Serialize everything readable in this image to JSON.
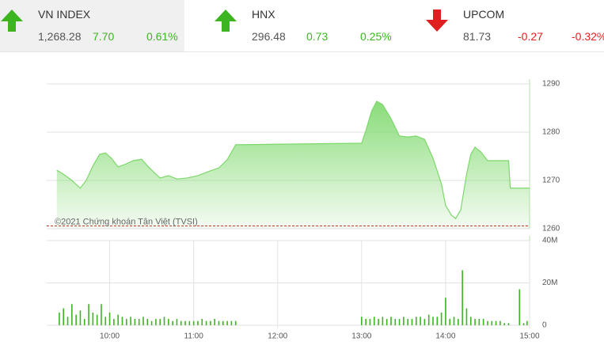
{
  "indices": [
    {
      "name": "VN INDEX",
      "value": "1,268.28",
      "change": "7.70",
      "percent": "0.61%",
      "direction": "up",
      "color": "#3cb521"
    },
    {
      "name": "HNX",
      "value": "296.48",
      "change": "0.73",
      "percent": "0.25%",
      "direction": "up",
      "color": "#3cb521"
    },
    {
      "name": "UPCOM",
      "value": "81.73",
      "change": "-0.27",
      "percent": "-0.32%",
      "direction": "down",
      "color": "#e02020"
    }
  ],
  "chart_data": [
    {
      "type": "area",
      "watermark": "©2021 Chứng khoán Tân Việt (TVSI)",
      "xlim": [
        9.25,
        15.0
      ],
      "ylim": [
        1260,
        1290
      ],
      "yticks": [
        1260,
        1270,
        1280,
        1290
      ],
      "grid": true,
      "reference": 1260.58,
      "reference_color": "#c0392b",
      "x": [
        9.37,
        9.45,
        9.55,
        9.6,
        9.65,
        9.72,
        9.8,
        9.88,
        9.95,
        10.02,
        10.1,
        10.18,
        10.28,
        10.38,
        10.45,
        10.55,
        10.6,
        10.7,
        10.8,
        10.92,
        11.05,
        11.2,
        11.3,
        11.4,
        11.5,
        12.0,
        13.0,
        13.05,
        13.12,
        13.18,
        13.25,
        13.35,
        13.45,
        13.55,
        13.65,
        13.75,
        13.85,
        13.95,
        14.0,
        14.07,
        14.12,
        14.18,
        14.25,
        14.3,
        14.35,
        14.42,
        14.5,
        14.75,
        14.77,
        15.0
      ],
      "series": [
        {
          "color": "#7cd86a",
          "values": [
            1272.1,
            1271.3,
            1270,
            1269.2,
            1268.4,
            1270,
            1273,
            1275.4,
            1275.7,
            1274.6,
            1272.8,
            1273.3,
            1274.1,
            1274.4,
            1273,
            1271.3,
            1270.5,
            1271,
            1270.3,
            1270.5,
            1271,
            1272,
            1272.6,
            1274.3,
            1277.4,
            1277.5,
            1277.7,
            1280.3,
            1284.4,
            1286.4,
            1285.7,
            1282.8,
            1279.2,
            1279,
            1279.2,
            1278.5,
            1274.6,
            1269.3,
            1264.8,
            1262.8,
            1262.1,
            1263.9,
            1271.3,
            1275.4,
            1276.9,
            1275.9,
            1274.1,
            1274.1,
            1268.4,
            1268.4
          ]
        }
      ]
    },
    {
      "type": "bar",
      "xlim": [
        9.25,
        15.0
      ],
      "ylim": [
        0,
        40
      ],
      "yticks": [
        0,
        {
          "value": 20,
          "label": "20M"
        },
        {
          "value": 40,
          "label": "40M"
        }
      ],
      "grid": true,
      "xticks": [
        {
          "value": 10,
          "label": "10:00"
        },
        {
          "value": 11,
          "label": "11:00"
        },
        {
          "value": 12,
          "label": "12:00"
        },
        {
          "value": 13,
          "label": "13:00"
        },
        {
          "value": 14,
          "label": "14:00"
        },
        {
          "value": 15,
          "label": "15:00"
        }
      ],
      "x": [
        9.4,
        9.45,
        9.5,
        9.55,
        9.6,
        9.65,
        9.7,
        9.75,
        9.8,
        9.85,
        9.9,
        9.95,
        10.0,
        10.05,
        10.1,
        10.15,
        10.2,
        10.25,
        10.3,
        10.35,
        10.4,
        10.45,
        10.5,
        10.55,
        10.6,
        10.65,
        10.7,
        10.75,
        10.8,
        10.85,
        10.9,
        10.95,
        11.0,
        11.05,
        11.1,
        11.15,
        11.2,
        11.25,
        11.3,
        11.35,
        11.4,
        11.45,
        11.5,
        13.0,
        13.05,
        13.1,
        13.15,
        13.2,
        13.25,
        13.3,
        13.35,
        13.4,
        13.45,
        13.5,
        13.55,
        13.6,
        13.65,
        13.7,
        13.75,
        13.8,
        13.85,
        13.9,
        13.95,
        14.0,
        14.05,
        14.1,
        14.15,
        14.2,
        14.25,
        14.3,
        14.35,
        14.4,
        14.45,
        14.5,
        14.55,
        14.6,
        14.65,
        14.7,
        14.75,
        14.88,
        14.93,
        14.97
      ],
      "series": [
        {
          "color": "#3cb521",
          "values": [
            6,
            8,
            4,
            10,
            5,
            7,
            3,
            10,
            6,
            5,
            10,
            4,
            6,
            3,
            5,
            4,
            3,
            4,
            3,
            3,
            4,
            3,
            2,
            3,
            3,
            4,
            3,
            2,
            3,
            2,
            2,
            2,
            2,
            2,
            3,
            2,
            2,
            3,
            2,
            2,
            2,
            2,
            2,
            4,
            3,
            3,
            4,
            3,
            4,
            3,
            4,
            3,
            3,
            4,
            3,
            3,
            4,
            4,
            3,
            5,
            4,
            4,
            6,
            13,
            3,
            4,
            3,
            26,
            8,
            4,
            3,
            3,
            3,
            2,
            2,
            2,
            2,
            1,
            1,
            17,
            1,
            2
          ]
        }
      ]
    }
  ]
}
